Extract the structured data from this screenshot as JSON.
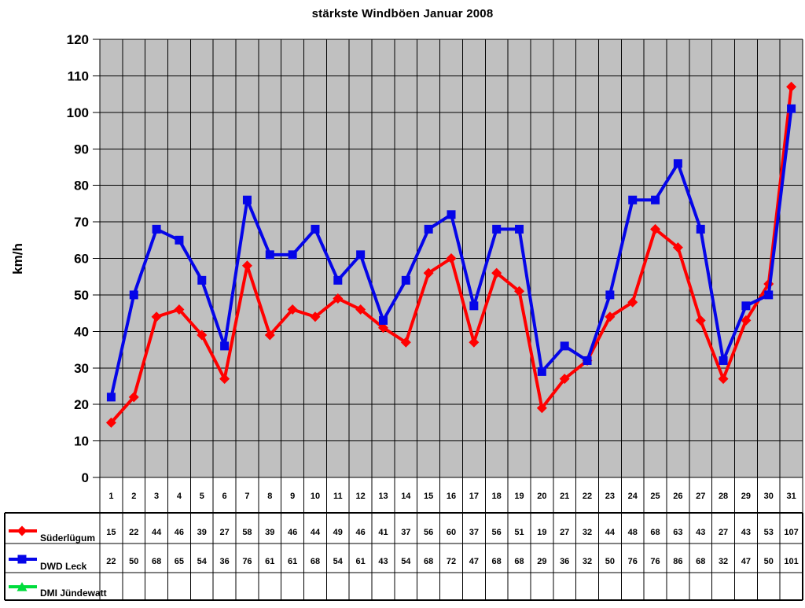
{
  "chart_data": {
    "type": "line",
    "title": "stärkste Windböen Januar 2008",
    "ylabel": "km/h",
    "ylim": [
      0,
      120
    ],
    "ytick_step": 10,
    "grid": true,
    "plot_bg": "#c0c0c0",
    "grid_color": "#000000",
    "legend_position": "table-left",
    "categories": [
      1,
      2,
      3,
      4,
      5,
      6,
      7,
      8,
      9,
      10,
      11,
      12,
      13,
      14,
      15,
      16,
      17,
      18,
      19,
      20,
      21,
      22,
      23,
      24,
      25,
      26,
      27,
      28,
      29,
      30,
      31
    ],
    "series": [
      {
        "name": "Süderlügum",
        "color": "#ff0000",
        "marker": "diamond",
        "values": [
          15,
          22,
          44,
          46,
          39,
          27,
          58,
          39,
          46,
          44,
          49,
          46,
          41,
          37,
          56,
          60,
          37,
          56,
          51,
          19,
          27,
          32,
          44,
          48,
          68,
          63,
          43,
          27,
          43,
          53,
          107
        ]
      },
      {
        "name": "DWD Leck",
        "color": "#0505e8",
        "marker": "square",
        "values": [
          22,
          50,
          68,
          65,
          54,
          36,
          76,
          61,
          61,
          68,
          54,
          61,
          43,
          54,
          68,
          72,
          47,
          68,
          68,
          29,
          36,
          32,
          50,
          76,
          76,
          86,
          68,
          32,
          47,
          50,
          101
        ]
      },
      {
        "name": "DMI Jündewatt",
        "color": "#00dc3c",
        "marker": "triangle",
        "values": []
      }
    ]
  }
}
